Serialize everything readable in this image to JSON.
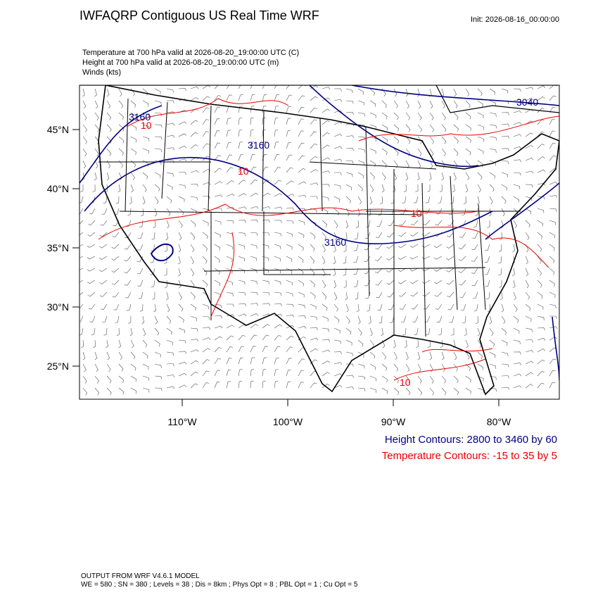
{
  "header": {
    "title": "IWFAQRP Contiguous US Real Time WRF",
    "init": "Init: 2026-08-16_00:00:00",
    "fields": [
      "Temperature at 700 hPa valid at 2026-08-20_19:00:00 UTC   (C)",
      "Height at 700 hPa valid at 2026-08-20_19:00:00 UTC   (m)",
      "Winds   (kts)"
    ]
  },
  "map": {
    "lat_labels": [
      "45°N",
      "40°N",
      "35°N",
      "30°N",
      "25°N"
    ],
    "lon_labels": [
      "110°W",
      "100°W",
      "90°W",
      "80°W"
    ],
    "contour_labels": [
      {
        "text": "3160",
        "kind": "height"
      },
      {
        "text": "10",
        "kind": "temperature"
      },
      {
        "text": "3160",
        "kind": "height"
      },
      {
        "text": "10",
        "kind": "temperature"
      },
      {
        "text": "3160",
        "kind": "height"
      },
      {
        "text": "3040",
        "kind": "height"
      },
      {
        "text": "10",
        "kind": "temperature"
      },
      {
        "text": "10",
        "kind": "temperature"
      }
    ]
  },
  "legend": {
    "height": "Height Contours: 2800 to 3460 by 60",
    "temperature": "Temperature Contours: -15 to 35 by 5"
  },
  "footer": {
    "model": "OUTPUT FROM WRF V4.6.1 MODEL",
    "settings": "WE = 580 ; SN = 380 ; Levels = 38 ; Dis = 8km ; Phys Opt = 8 ; PBL Opt = 1 ; Cu Opt = 5"
  }
}
